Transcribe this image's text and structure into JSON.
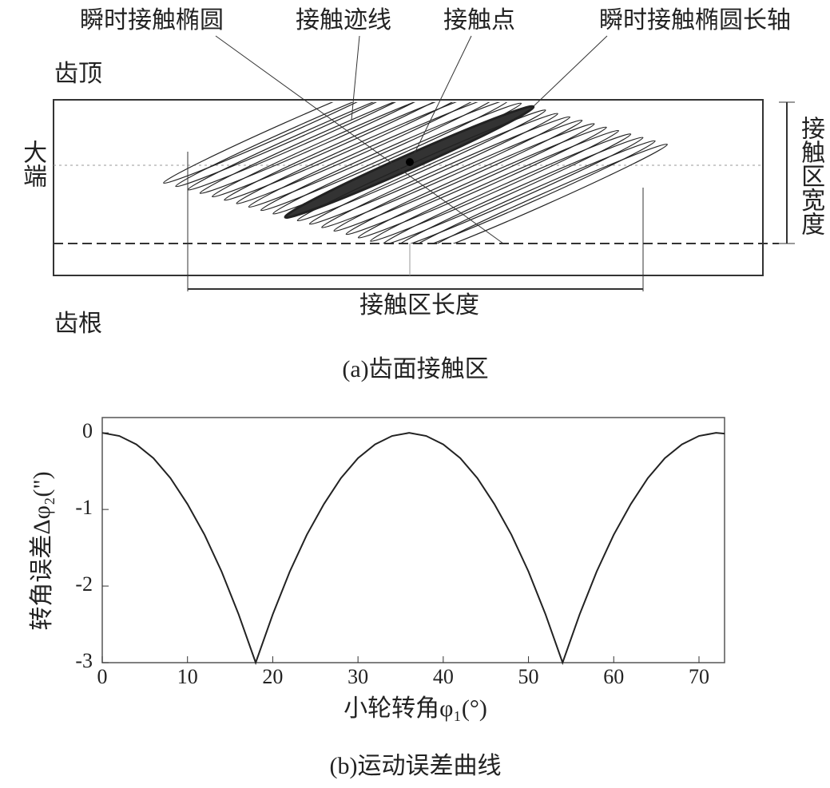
{
  "diagram": {
    "labels": {
      "instant_ellipse": "瞬时接触椭圆",
      "contact_path": "接触迹线",
      "contact_point": "接触点",
      "ellipse_major_axis": "瞬时接触椭圆长轴",
      "tooth_top": "齿顶",
      "big_end": "大端",
      "contact_width": "接触区宽度",
      "contact_length": "接触区长度",
      "tooth_root": "齿根"
    },
    "caption": "(a)齿面接触区"
  },
  "chart_data": {
    "type": "line",
    "caption": "(b)运动误差曲线",
    "x_label": "小轮转角φ₁(°)",
    "y_label": "转角误差Δφ₂(\")",
    "x": [
      0,
      2,
      4,
      6,
      8,
      10,
      12,
      14,
      16,
      18,
      20,
      22,
      24,
      26,
      28,
      30,
      32,
      34,
      36,
      38,
      40,
      42,
      44,
      46,
      48,
      50,
      52,
      54,
      56,
      58,
      60,
      62,
      64,
      66,
      68,
      70,
      72,
      73
    ],
    "series": [
      {
        "name": "运动误差",
        "color": "#222222",
        "values": [
          0,
          -0.04,
          -0.15,
          -0.33,
          -0.59,
          -0.93,
          -1.33,
          -1.81,
          -2.37,
          -3,
          -2.37,
          -1.81,
          -1.33,
          -0.93,
          -0.59,
          -0.33,
          -0.15,
          -0.04,
          0,
          -0.04,
          -0.15,
          -0.33,
          -0.59,
          -0.93,
          -1.33,
          -1.81,
          -2.37,
          -3,
          -2.37,
          -1.81,
          -1.33,
          -0.93,
          -0.59,
          -0.33,
          -0.15,
          -0.04,
          0,
          -0.01
        ]
      }
    ],
    "xlim": [
      0,
      73
    ],
    "ylim": [
      -3,
      0.2
    ],
    "xticks": [
      0,
      10,
      20,
      30,
      40,
      50,
      60,
      70
    ],
    "yticks": [
      0,
      -1,
      -2,
      -3
    ]
  }
}
